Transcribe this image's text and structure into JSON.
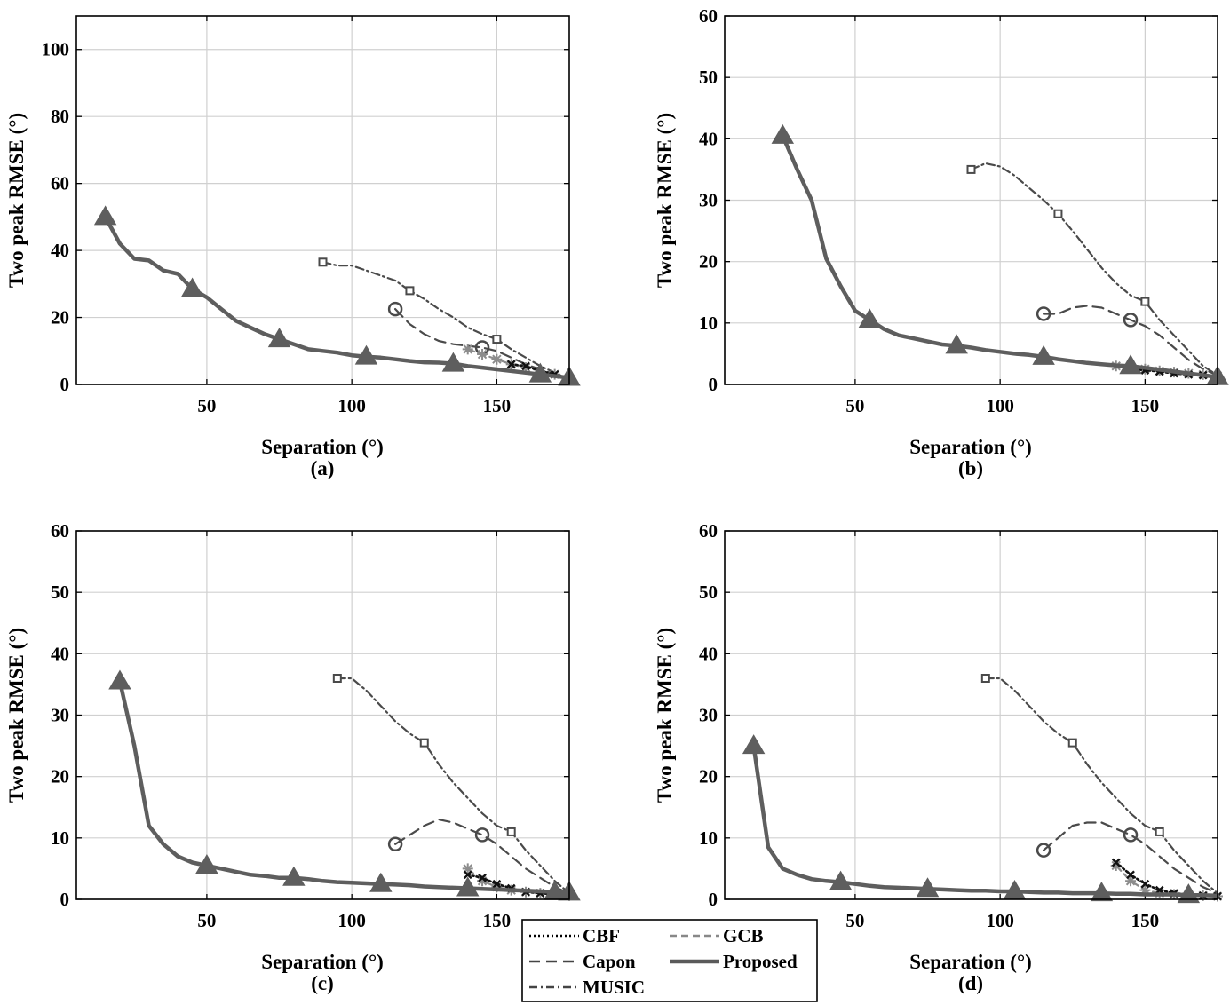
{
  "figure": {
    "panel_labels": [
      "(a)",
      "(b)",
      "(c)",
      "(d)"
    ],
    "legend": {
      "entries": [
        {
          "label": "CBF",
          "style": "dotted",
          "color": "#000000"
        },
        {
          "label": "GCB",
          "style": "dashed",
          "color": "#888888"
        },
        {
          "label": "Capon",
          "style": "dashed",
          "color": "#444444"
        },
        {
          "label": "Proposed",
          "style": "solid",
          "color": "#5a5a5a"
        },
        {
          "label": "MUSIC",
          "style": "dashdot",
          "color": "#444444"
        }
      ]
    },
    "series_colors": {
      "CBF": "#111111",
      "GCB": "#8c8c8c",
      "Capon": "#4a4a4a",
      "MUSIC": "#4a4a4a",
      "Proposed": "#5e5e5e"
    }
  },
  "chart_data": [
    {
      "type": "line",
      "panel": "(a)",
      "xlabel": "Separation (°)",
      "ylabel": "Two peak RMSE (°)",
      "xlim": [
        5,
        175
      ],
      "ylim": [
        0,
        110
      ],
      "xticks": [
        50,
        100,
        150
      ],
      "yticks": [
        0,
        20,
        40,
        60,
        80,
        100
      ],
      "grid": true,
      "series": [
        {
          "name": "Proposed",
          "marker": "triangle",
          "x": [
            15,
            20,
            25,
            30,
            35,
            40,
            45,
            50,
            55,
            60,
            65,
            70,
            75,
            80,
            85,
            90,
            95,
            100,
            105,
            110,
            115,
            120,
            125,
            130,
            135,
            140,
            145,
            150,
            155,
            160,
            165,
            170,
            175
          ],
          "y": [
            50,
            42,
            37.5,
            37,
            34,
            33,
            28.5,
            26,
            22.5,
            19,
            17,
            15,
            13.5,
            12,
            10.5,
            10,
            9.5,
            8.7,
            8.3,
            8,
            7.5,
            7,
            6.6,
            6.5,
            6.2,
            5.5,
            5,
            4.5,
            4,
            3.5,
            3,
            2.5,
            2
          ],
          "marker_x": [
            15,
            45,
            75,
            105,
            135,
            165,
            175
          ]
        },
        {
          "name": "MUSIC",
          "marker": "square",
          "x": [
            90,
            95,
            100,
            105,
            110,
            115,
            120,
            125,
            130,
            135,
            140,
            145,
            150,
            155,
            160,
            165,
            170,
            175
          ],
          "y": [
            36.5,
            35.5,
            35.5,
            34,
            32.5,
            31,
            28,
            25.5,
            22.5,
            20,
            17,
            15,
            13.5,
            10.5,
            8,
            5.5,
            3.5,
            1.5
          ],
          "marker_x": [
            90,
            120,
            150
          ]
        },
        {
          "name": "Capon",
          "marker": "circle",
          "x": [
            115,
            120,
            125,
            130,
            135,
            140,
            145,
            150,
            155,
            160,
            165,
            170,
            175
          ],
          "y": [
            22.5,
            18,
            15,
            13,
            12,
            11.5,
            11,
            10,
            8,
            6,
            4.5,
            3,
            2
          ],
          "marker_x": [
            115,
            145
          ]
        },
        {
          "name": "GCB",
          "marker": "asterisk",
          "x": [
            140,
            145,
            150,
            155,
            160,
            165,
            170,
            175
          ],
          "y": [
            10.5,
            9,
            7.5,
            6,
            5,
            4,
            3,
            2
          ],
          "marker_x": [
            140,
            145,
            150,
            155,
            160,
            165,
            170,
            175
          ]
        },
        {
          "name": "CBF",
          "marker": "x",
          "x": [
            155,
            160,
            165,
            170,
            175
          ],
          "y": [
            6,
            5.5,
            4,
            3,
            2
          ],
          "marker_x": [
            155,
            160,
            165,
            170,
            175
          ]
        }
      ]
    },
    {
      "type": "line",
      "panel": "(b)",
      "xlabel": "Separation (°)",
      "ylabel": "Two peak RMSE (°)",
      "xlim": [
        5,
        175
      ],
      "ylim": [
        0,
        60
      ],
      "xticks": [
        50,
        100,
        150
      ],
      "yticks": [
        0,
        10,
        20,
        30,
        40,
        50,
        60
      ],
      "grid": true,
      "series": [
        {
          "name": "Proposed",
          "marker": "triangle",
          "x": [
            25,
            30,
            35,
            40,
            45,
            50,
            55,
            60,
            65,
            70,
            75,
            80,
            85,
            90,
            95,
            100,
            105,
            110,
            115,
            120,
            125,
            130,
            135,
            140,
            145,
            150,
            155,
            160,
            165,
            170,
            175
          ],
          "y": [
            40.5,
            35,
            30,
            20.5,
            16,
            12,
            10.5,
            9,
            8,
            7.5,
            7,
            6.5,
            6.3,
            6,
            5.6,
            5.3,
            5,
            4.8,
            4.5,
            4.1,
            3.8,
            3.5,
            3.3,
            3.1,
            3,
            2.7,
            2.4,
            2.1,
            1.8,
            1.5,
            1.2
          ],
          "marker_x": [
            25,
            55,
            85,
            115,
            145,
            175
          ]
        },
        {
          "name": "MUSIC",
          "marker": "square",
          "x": [
            90,
            95,
            100,
            105,
            110,
            115,
            120,
            125,
            130,
            135,
            140,
            145,
            150,
            155,
            160,
            165,
            170,
            175
          ],
          "y": [
            35,
            36,
            35.5,
            34,
            32,
            30,
            27.8,
            25,
            22,
            19,
            16.5,
            14.5,
            13.5,
            10.5,
            8,
            5.5,
            3,
            1.5
          ],
          "marker_x": [
            90,
            120,
            150
          ]
        },
        {
          "name": "Capon",
          "marker": "circle",
          "x": [
            115,
            120,
            125,
            130,
            135,
            140,
            145,
            150,
            155,
            160,
            165,
            170,
            175
          ],
          "y": [
            11.5,
            11.5,
            12.5,
            12.8,
            12.5,
            11.5,
            10.5,
            9.5,
            8,
            6,
            4,
            2.5,
            1.5
          ],
          "marker_x": [
            115,
            145
          ]
        },
        {
          "name": "GCB",
          "marker": "asterisk",
          "x": [
            140,
            145,
            150,
            155,
            160,
            165,
            170,
            175
          ],
          "y": [
            3,
            2.8,
            2.5,
            2.2,
            2,
            1.8,
            1.6,
            1.4
          ],
          "marker_x": [
            140,
            145,
            150,
            155,
            160,
            165,
            170,
            175
          ]
        },
        {
          "name": "CBF",
          "marker": "x",
          "x": [
            145,
            150,
            155,
            160,
            165,
            170,
            175
          ],
          "y": [
            2.5,
            2.3,
            2.1,
            1.8,
            1.6,
            1.5,
            1.3
          ],
          "marker_x": [
            145,
            150,
            155,
            160,
            165,
            170,
            175
          ]
        }
      ]
    },
    {
      "type": "line",
      "panel": "(c)",
      "xlabel": "Separation (°)",
      "ylabel": "Two peak RMSE (°)",
      "xlim": [
        5,
        175
      ],
      "ylim": [
        0,
        60
      ],
      "xticks": [
        50,
        100,
        150
      ],
      "yticks": [
        0,
        10,
        20,
        30,
        40,
        50,
        60
      ],
      "grid": true,
      "series": [
        {
          "name": "Proposed",
          "marker": "triangle",
          "x": [
            20,
            25,
            30,
            35,
            40,
            45,
            50,
            55,
            60,
            65,
            70,
            75,
            80,
            85,
            90,
            95,
            100,
            105,
            110,
            115,
            120,
            125,
            130,
            135,
            140,
            145,
            150,
            155,
            160,
            165,
            170,
            175
          ],
          "y": [
            35.5,
            25,
            12,
            9,
            7,
            6,
            5.5,
            5,
            4.5,
            4,
            3.8,
            3.5,
            3.5,
            3.3,
            3,
            2.8,
            2.7,
            2.6,
            2.5,
            2.4,
            2.3,
            2.1,
            2,
            1.9,
            1.8,
            1.7,
            1.6,
            1.5,
            1.4,
            1.3,
            1.2,
            1.1
          ],
          "marker_x": [
            20,
            50,
            80,
            110,
            140,
            170,
            175
          ]
        },
        {
          "name": "MUSIC",
          "marker": "square",
          "x": [
            95,
            100,
            105,
            110,
            115,
            120,
            125,
            130,
            135,
            140,
            145,
            150,
            155,
            160,
            165,
            170,
            175
          ],
          "y": [
            36,
            36,
            34,
            31.5,
            29,
            27,
            25.5,
            22,
            19,
            16.5,
            14,
            12,
            11,
            8,
            5.5,
            3,
            1
          ],
          "marker_x": [
            95,
            125,
            155
          ]
        },
        {
          "name": "Capon",
          "marker": "circle",
          "x": [
            115,
            120,
            125,
            130,
            135,
            140,
            145,
            150,
            155,
            160,
            165,
            170,
            175
          ],
          "y": [
            9,
            10.5,
            12,
            13,
            12.5,
            11.5,
            10.5,
            9,
            7,
            5,
            3.5,
            2,
            1
          ],
          "marker_x": [
            115,
            145
          ]
        },
        {
          "name": "GCB",
          "marker": "asterisk",
          "x": [
            140,
            145,
            150,
            155,
            160,
            165,
            170,
            175
          ],
          "y": [
            5,
            3,
            2,
            1.5,
            1.2,
            1,
            0.8,
            0.6
          ],
          "marker_x": [
            140,
            145,
            150,
            155,
            160,
            165,
            170,
            175
          ]
        },
        {
          "name": "CBF",
          "marker": "x",
          "x": [
            140,
            145,
            150,
            155,
            160,
            165,
            170,
            175
          ],
          "y": [
            4,
            3.5,
            2.5,
            1.8,
            1.2,
            1,
            0.8,
            0.6
          ],
          "marker_x": [
            140,
            145,
            150,
            155,
            160,
            165,
            170,
            175
          ]
        }
      ]
    },
    {
      "type": "line",
      "panel": "(d)",
      "xlabel": "Separation (°)",
      "ylabel": "Two peak RMSE (°)",
      "xlim": [
        5,
        175
      ],
      "ylim": [
        0,
        60
      ],
      "xticks": [
        50,
        100,
        150
      ],
      "yticks": [
        0,
        10,
        20,
        30,
        40,
        50,
        60
      ],
      "grid": true,
      "series": [
        {
          "name": "Proposed",
          "marker": "triangle",
          "x": [
            15,
            20,
            25,
            30,
            35,
            40,
            45,
            50,
            55,
            60,
            65,
            70,
            75,
            80,
            85,
            90,
            95,
            100,
            105,
            110,
            115,
            120,
            125,
            130,
            135,
            140,
            145,
            150,
            155,
            160,
            165,
            170,
            175
          ],
          "y": [
            25,
            8.5,
            5,
            4,
            3.3,
            3,
            2.8,
            2.5,
            2.2,
            2,
            1.9,
            1.8,
            1.7,
            1.6,
            1.5,
            1.4,
            1.4,
            1.3,
            1.3,
            1.2,
            1.1,
            1.1,
            1,
            1,
            1,
            0.9,
            0.9,
            0.8,
            0.8,
            0.8,
            0.7,
            0.7,
            0.6
          ],
          "marker_x": [
            15,
            45,
            75,
            105,
            135,
            165
          ]
        },
        {
          "name": "MUSIC",
          "marker": "square",
          "x": [
            95,
            100,
            105,
            110,
            115,
            120,
            125,
            130,
            135,
            140,
            145,
            150,
            155,
            160,
            165,
            170,
            175
          ],
          "y": [
            36,
            36,
            34,
            31.5,
            29,
            27,
            25.5,
            22,
            19,
            16.5,
            14,
            12,
            11,
            8,
            5.5,
            3,
            1
          ],
          "marker_x": [
            95,
            125,
            155
          ]
        },
        {
          "name": "Capon",
          "marker": "circle",
          "x": [
            115,
            120,
            125,
            130,
            135,
            140,
            145,
            150,
            155,
            160,
            165,
            170,
            175
          ],
          "y": [
            8,
            10,
            12,
            12.5,
            12.5,
            11.5,
            10.5,
            9,
            7,
            5,
            3.5,
            2,
            1
          ],
          "marker_x": [
            115,
            145
          ]
        },
        {
          "name": "GCB",
          "marker": "asterisk",
          "x": [
            140,
            145,
            150,
            155,
            160,
            165,
            170,
            175
          ],
          "y": [
            5.5,
            3,
            1.5,
            1,
            0.8,
            0.7,
            0.6,
            0.5
          ],
          "marker_x": [
            140,
            145,
            150,
            155,
            160,
            165,
            170,
            175
          ]
        },
        {
          "name": "CBF",
          "marker": "x",
          "x": [
            140,
            145,
            150,
            155,
            160,
            165,
            170,
            175
          ],
          "y": [
            6,
            4,
            2.5,
            1.5,
            1,
            0.8,
            0.6,
            0.5
          ],
          "marker_x": [
            140,
            145,
            150,
            155,
            160,
            165,
            170,
            175
          ]
        }
      ]
    }
  ]
}
